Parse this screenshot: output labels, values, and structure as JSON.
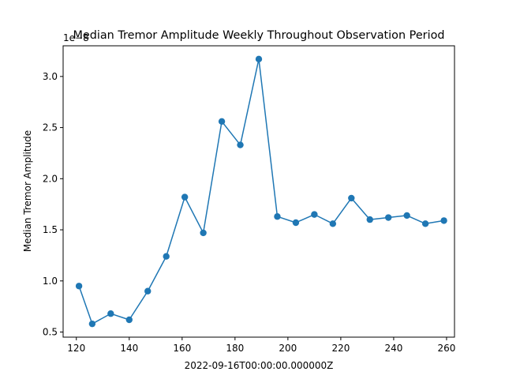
{
  "chart_data": {
    "type": "line",
    "title": "Median Tremor Amplitude Weekly Throughout Observation Period",
    "xlabel": "2022-09-16T00:00:00.000000Z",
    "ylabel": "Median Tremor Amplitude",
    "offset_label": "1e−8",
    "xlim": [
      115,
      263
    ],
    "ylim": [
      0.45,
      3.3
    ],
    "xticks": [
      120,
      140,
      160,
      180,
      200,
      220,
      240,
      260
    ],
    "yticks": [
      0.5,
      1.0,
      1.5,
      2.0,
      2.5,
      3.0
    ],
    "xtick_labels": [
      "120",
      "140",
      "160",
      "180",
      "200",
      "220",
      "240",
      "260"
    ],
    "ytick_labels": [
      "0.5",
      "1.0",
      "1.5",
      "2.0",
      "2.5",
      "3.0"
    ],
    "grid": false,
    "color": "#1f77b4",
    "series": [
      {
        "x": [
          121,
          126,
          133,
          140,
          147,
          154,
          161,
          168,
          175,
          182,
          189,
          196,
          203,
          210,
          217,
          224,
          231,
          238,
          245,
          252,
          259
        ],
        "y": [
          0.95,
          0.58,
          0.68,
          0.62,
          0.9,
          1.24,
          1.82,
          1.47,
          2.56,
          2.33,
          3.17,
          1.63,
          1.57,
          1.65,
          1.56,
          1.81,
          1.6,
          1.62,
          1.64,
          1.56,
          1.59
        ]
      }
    ]
  }
}
